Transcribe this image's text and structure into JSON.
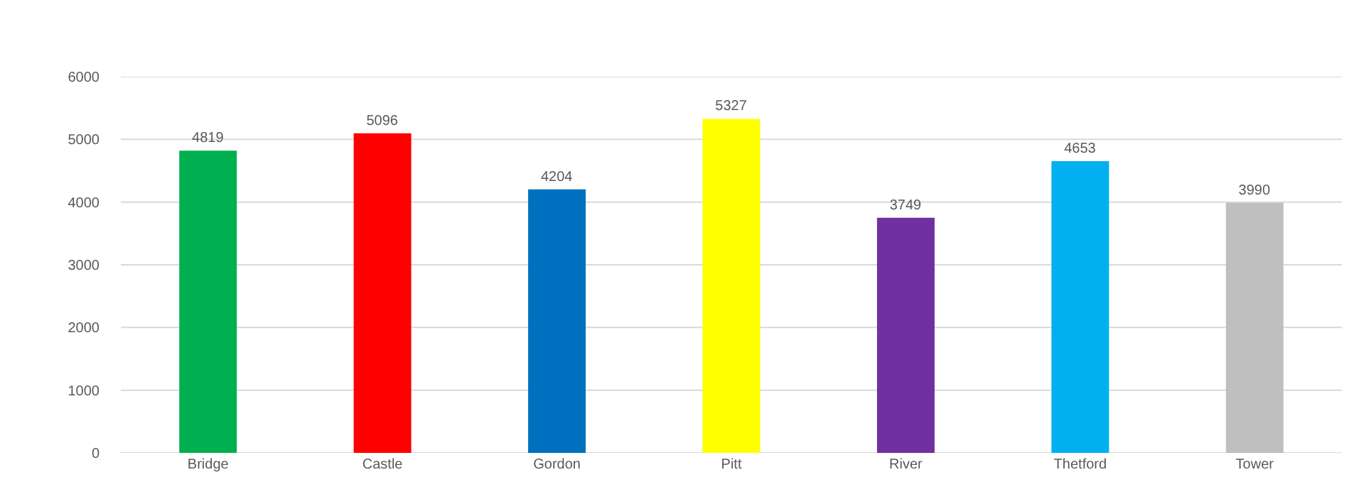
{
  "chart_data": {
    "type": "bar",
    "categories": [
      "Bridge",
      "Castle",
      "Gordon",
      "Pitt",
      "River",
      "Thetford",
      "Tower"
    ],
    "values": [
      4819,
      5096,
      4204,
      5327,
      3749,
      4653,
      3990
    ],
    "colors": [
      "#00b050",
      "#ff0000",
      "#0070c0",
      "#ffff00",
      "#7030a0",
      "#00b0f0",
      "#bfbfbf"
    ],
    "ylim": [
      0,
      6000
    ],
    "yticks": [
      0,
      1000,
      2000,
      3000,
      4000,
      5000,
      6000
    ],
    "grid": "y",
    "data_labels": true
  }
}
